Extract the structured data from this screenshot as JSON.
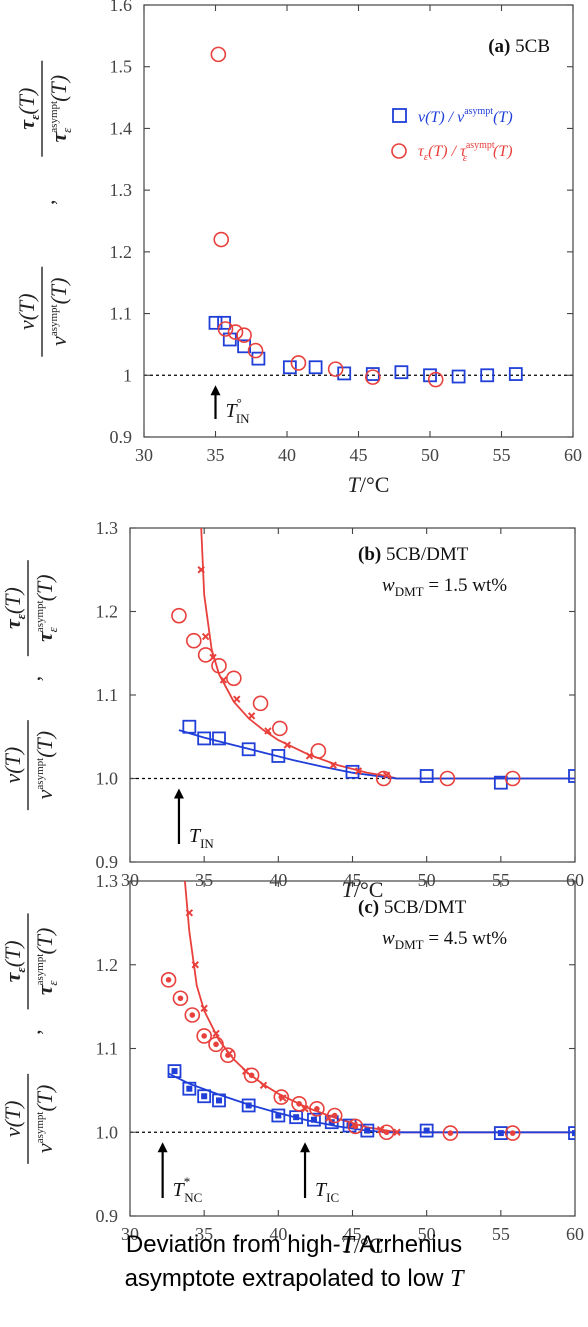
{
  "colors": {
    "blue": "#1f3fd8",
    "red": "#e8403c",
    "axis": "#444444",
    "black": "#000000"
  },
  "caption": {
    "line1_pre": "Deviation from high-",
    "line1_T": "T",
    "line1_post": " Arrhenius",
    "line2_pre": "asymptote extrapolated to low ",
    "line2_T": "T"
  },
  "chart_data": [
    {
      "type": "scatter",
      "panel": "(a) 5CB",
      "panel_tag": "(a)",
      "panel_name": "5CB",
      "xlabel_T": "T",
      "xlabel_unit": "/°C",
      "xlim": [
        30,
        60
      ],
      "ylim": [
        0.9,
        1.6
      ],
      "xticks": [
        "30",
        "35",
        "40",
        "45",
        "50",
        "55",
        "60"
      ],
      "yticks": [
        "0.9",
        "1",
        "1.1",
        "1.2",
        "1.3",
        "1.4",
        "1.5",
        "1.6"
      ],
      "reference_line": 1.0,
      "legend": {
        "position": "top-right",
        "blue_main": "ν(T) / ν",
        "blue_sup": "asympt",
        "blue_end": "(T)",
        "red_main": "τ",
        "red_sub": "ε",
        "red_mid": "(T) / τ",
        "red_sup": "asympt",
        "red_sub2": "ε",
        "red_end": "(T)"
      },
      "arrow": {
        "x": 35,
        "label": "T",
        "label_sub": "IN",
        "label_sup": "°"
      },
      "series": [
        {
          "marker": "square",
          "color": "blue",
          "x": [
            35.0,
            35.6,
            36.0,
            37.0,
            38.0,
            40.2,
            42.0,
            44.0,
            46.0,
            48.0,
            50.0,
            52.0,
            54.0,
            56.0
          ],
          "y": [
            1.085,
            1.085,
            1.058,
            1.047,
            1.027,
            1.013,
            1.013,
            1.003,
            1.002,
            1.005,
            1.0,
            0.998,
            1.0,
            1.002
          ]
        },
        {
          "marker": "circle",
          "color": "red",
          "x": [
            35.2,
            35.4,
            35.7,
            36.4,
            37.0,
            37.8,
            40.8,
            43.4,
            46.0,
            50.4
          ],
          "y": [
            1.52,
            1.22,
            1.075,
            1.07,
            1.065,
            1.04,
            1.02,
            1.01,
            0.997,
            0.993
          ]
        }
      ]
    },
    {
      "type": "scatter",
      "panel": "(b) 5CB/DMT",
      "panel_tag": "(b)",
      "panel_name": "5CB/DMT",
      "conc_w": "w",
      "conc_sub": "DMT",
      "conc_val": " = 1.5 wt%",
      "xlabel_T": "T",
      "xlabel_unit": "/°C",
      "xlim": [
        30,
        60
      ],
      "ylim": [
        0.9,
        1.3
      ],
      "xticks": [
        "30",
        "35",
        "40",
        "45",
        "50",
        "55",
        "60"
      ],
      "yticks": [
        "0.9",
        "1.0",
        "1.1",
        "1.2",
        "1.3"
      ],
      "reference_line": 1.0,
      "arrow": {
        "x": 33.3,
        "label": "T",
        "label_sub": "IN",
        "label_sup": ""
      },
      "series": [
        {
          "marker": "square",
          "color": "blue",
          "x": [
            34.0,
            35.0,
            36.0,
            38.0,
            40.0,
            45.0,
            50.0,
            55.0,
            60.0
          ],
          "y": [
            1.062,
            1.048,
            1.048,
            1.035,
            1.027,
            1.008,
            1.003,
            0.995,
            1.003
          ]
        },
        {
          "marker": "circle",
          "color": "red",
          "x": [
            33.3,
            34.3,
            35.1,
            36.0,
            37.0,
            38.8,
            40.1,
            42.7,
            47.1,
            51.4,
            55.8
          ],
          "y": [
            1.195,
            1.165,
            1.148,
            1.135,
            1.12,
            1.09,
            1.06,
            1.033,
            1.0,
            1.0,
            1.0
          ]
        },
        {
          "marker": "cross",
          "color": "red",
          "x": [
            34.8,
            35.1,
            35.6,
            36.3,
            37.2,
            38.2,
            39.3,
            40.6,
            42.1,
            43.7,
            45.4,
            47.3
          ],
          "y": [
            1.25,
            1.17,
            1.145,
            1.118,
            1.095,
            1.075,
            1.057,
            1.04,
            1.027,
            1.016,
            1.009,
            1.004
          ]
        }
      ],
      "curves": [
        {
          "color": "red",
          "x": [
            34.8,
            35.0,
            35.5,
            36.0,
            37.0,
            38.0,
            39.0,
            40.0,
            42.0,
            44.0,
            46.0,
            47.3,
            48.0,
            50.0,
            55.0,
            60.0
          ],
          "y": [
            1.3,
            1.22,
            1.155,
            1.125,
            1.092,
            1.072,
            1.058,
            1.046,
            1.029,
            1.016,
            1.007,
            1.003,
            1.0,
            1.0,
            1.0,
            1.0
          ]
        },
        {
          "color": "blue",
          "x": [
            33.3,
            35.0,
            37.0,
            39.0,
            41.0,
            43.0,
            45.0,
            47.0,
            48.0,
            50.0,
            55.0,
            60.0
          ],
          "y": [
            1.058,
            1.049,
            1.04,
            1.031,
            1.022,
            1.014,
            1.007,
            1.002,
            1.0,
            1.0,
            1.0,
            1.0
          ]
        }
      ]
    },
    {
      "type": "scatter",
      "panel": "(c) 5CB/DMT",
      "panel_tag": "(c)",
      "panel_name": "5CB/DMT",
      "conc_w": "w",
      "conc_sub": "DMT",
      "conc_val": " = 4.5 wt%",
      "xlabel_T": "T",
      "xlabel_unit": "/°C",
      "xlim": [
        30,
        60
      ],
      "ylim": [
        0.9,
        1.3
      ],
      "xticks": [
        "30",
        "35",
        "40",
        "45",
        "50",
        "55",
        "60"
      ],
      "yticks": [
        "0.9",
        "1.0",
        "1.1",
        "1.2",
        "1.3"
      ],
      "reference_line": 1.0,
      "arrows": [
        {
          "x": 32.2,
          "label": "T",
          "label_sub": "NC",
          "label_sup": "*"
        },
        {
          "x": 41.8,
          "label": "T",
          "label_sub": "IC",
          "label_sup": ""
        }
      ],
      "series": [
        {
          "marker": "square-dot",
          "color": "blue",
          "x": [
            33.0,
            34.0,
            35.0,
            36.0,
            38.0,
            40.0,
            41.2,
            42.4,
            43.6,
            44.8,
            46.0,
            50.0,
            55.0,
            60.0
          ],
          "y": [
            1.073,
            1.052,
            1.043,
            1.038,
            1.032,
            1.02,
            1.018,
            1.015,
            1.012,
            1.008,
            1.002,
            1.002,
            0.999,
            0.999
          ]
        },
        {
          "marker": "circle-dot",
          "color": "red",
          "x": [
            32.6,
            33.4,
            34.2,
            35.0,
            35.8,
            36.6,
            38.2,
            40.2,
            41.4,
            42.6,
            43.8,
            45.2,
            47.3,
            51.6,
            55.8
          ],
          "y": [
            1.182,
            1.16,
            1.14,
            1.115,
            1.105,
            1.092,
            1.068,
            1.042,
            1.034,
            1.028,
            1.02,
            1.007,
            1.0,
            0.999,
            0.999
          ]
        },
        {
          "marker": "cross",
          "color": "red",
          "x": [
            34.0,
            34.4,
            35.0,
            35.8,
            36.7,
            37.8,
            39.0,
            40.3,
            41.8,
            43.4,
            45.1,
            46.9,
            48.0
          ],
          "y": [
            1.262,
            1.2,
            1.148,
            1.118,
            1.094,
            1.073,
            1.056,
            1.041,
            1.028,
            1.017,
            1.009,
            1.003,
            1.0
          ]
        }
      ],
      "curves": [
        {
          "color": "red",
          "x": [
            33.7,
            34.0,
            34.5,
            35.0,
            36.0,
            37.0,
            38.0,
            39.0,
            40.0,
            42.0,
            44.0,
            46.0,
            48.0,
            50.0,
            55.0,
            60.0
          ],
          "y": [
            1.3,
            1.24,
            1.175,
            1.145,
            1.11,
            1.087,
            1.07,
            1.057,
            1.046,
            1.029,
            1.016,
            1.006,
            1.0,
            1.0,
            1.0,
            1.0
          ]
        },
        {
          "color": "blue",
          "x": [
            32.6,
            34.0,
            36.0,
            38.0,
            40.0,
            42.0,
            44.0,
            46.0,
            47.5,
            50.0,
            55.0,
            60.0
          ],
          "y": [
            1.07,
            1.058,
            1.045,
            1.033,
            1.023,
            1.014,
            1.007,
            1.002,
            1.0,
            1.0,
            1.0,
            1.0
          ]
        }
      ]
    }
  ]
}
